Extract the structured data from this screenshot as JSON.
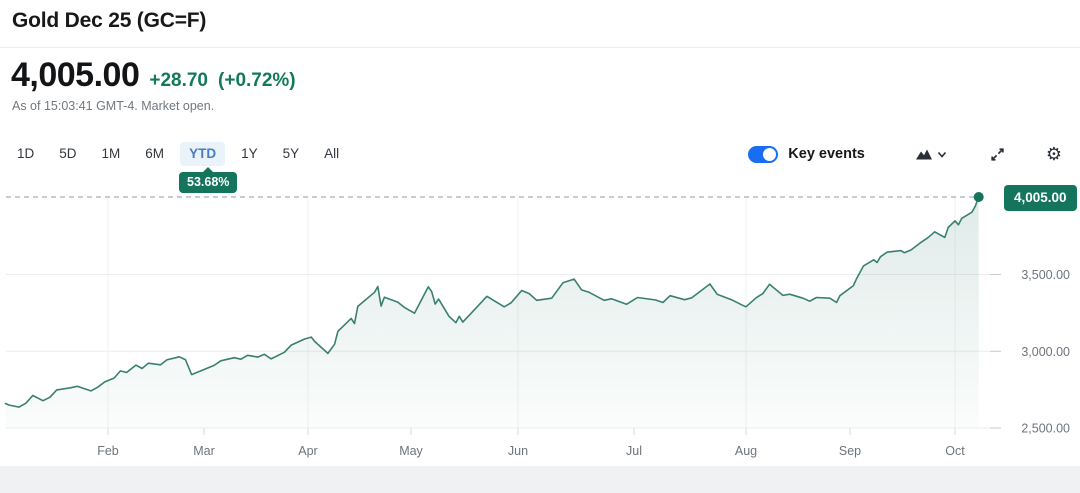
{
  "header": {
    "title": "Gold Dec 25 (GC=F)"
  },
  "quote": {
    "price": "4,005.00",
    "change": "+28.70",
    "change_pct": "(+0.72%)",
    "as_of": "As of 15:03:41 GMT-4. Market open.",
    "change_color": "#13795b"
  },
  "toolbar": {
    "ranges": [
      {
        "label": "1D",
        "active": false
      },
      {
        "label": "5D",
        "active": false
      },
      {
        "label": "1M",
        "active": false
      },
      {
        "label": "6M",
        "active": false
      },
      {
        "label": "YTD",
        "active": true
      },
      {
        "label": "1Y",
        "active": false
      },
      {
        "label": "5Y",
        "active": false
      },
      {
        "label": "All",
        "active": false
      }
    ],
    "ytd_return": "53.68%",
    "key_events_label": "Key events",
    "key_events_on": true,
    "icons": {
      "chart_type": "area-chart-icon",
      "chart_type_caret": "chevron-down-icon",
      "fullscreen": "expand-icon",
      "settings": "gear-icon"
    },
    "active_tab_color": "#4a7cc0",
    "toggle_color": "#186df2"
  },
  "chart_data": {
    "type": "area",
    "title": "Gold Dec 25 (GC=F) year-to-date price",
    "xlabel": "",
    "ylabel": "",
    "ylim": [
      2500,
      4050
    ],
    "grid": true,
    "legend": false,
    "line_color": "#3a8070",
    "badge_color": "#15745c",
    "x_axis": {
      "labels": [
        "Feb",
        "Mar",
        "Apr",
        "May",
        "Jun",
        "Jul",
        "Aug",
        "Sep",
        "Oct"
      ]
    },
    "y_axis": {
      "ticks": [
        {
          "label": "3,500.00",
          "value": 3500
        },
        {
          "label": "3,000.00",
          "value": 3000
        },
        {
          "label": "2,500.00",
          "value": 2500
        }
      ]
    },
    "current": {
      "value": 4005.0,
      "label": "4,005.00"
    },
    "points": [
      [
        "Jan 2",
        2660
      ],
      [
        "Jan 3",
        2650
      ],
      [
        "Jan 6",
        2636
      ],
      [
        "Jan 8",
        2662
      ],
      [
        "Jan 10",
        2712
      ],
      [
        "Jan 13",
        2678
      ],
      [
        "Jan 15",
        2700
      ],
      [
        "Jan 17",
        2748
      ],
      [
        "Jan 21",
        2762
      ],
      [
        "Jan 23",
        2772
      ],
      [
        "Jan 27",
        2742
      ],
      [
        "Jan 29",
        2766
      ],
      [
        "Jan 31",
        2800
      ],
      [
        "Feb 3",
        2826
      ],
      [
        "Feb 5",
        2872
      ],
      [
        "Feb 7",
        2862
      ],
      [
        "Feb 10",
        2910
      ],
      [
        "Feb 12",
        2888
      ],
      [
        "Feb 14",
        2922
      ],
      [
        "Feb 18",
        2912
      ],
      [
        "Feb 20",
        2944
      ],
      [
        "Feb 24",
        2964
      ],
      [
        "Feb 26",
        2946
      ],
      [
        "Feb 28",
        2848
      ],
      [
        "Mar 4",
        2908
      ],
      [
        "Mar 6",
        2938
      ],
      [
        "Mar 10",
        2958
      ],
      [
        "Mar 12",
        2948
      ],
      [
        "Mar 14",
        2974
      ],
      [
        "Mar 17",
        2962
      ],
      [
        "Mar 19",
        2980
      ],
      [
        "Mar 21",
        2950
      ],
      [
        "Mar 25",
        2994
      ],
      [
        "Mar 27",
        3040
      ],
      [
        "Mar 31",
        3080
      ],
      [
        "Apr 2",
        3092
      ],
      [
        "Apr 3",
        3064
      ],
      [
        "Apr 7",
        2986
      ],
      [
        "Apr 9",
        3046
      ],
      [
        "Apr 10",
        3130
      ],
      [
        "Apr 14",
        3214
      ],
      [
        "Apr 15",
        3180
      ],
      [
        "Apr 16",
        3292
      ],
      [
        "Apr 21",
        3384
      ],
      [
        "Apr 22",
        3422
      ],
      [
        "Apr 23",
        3294
      ],
      [
        "Apr 24",
        3352
      ],
      [
        "Apr 28",
        3320
      ],
      [
        "Apr 30",
        3286
      ],
      [
        "May 2",
        3248
      ],
      [
        "May 6",
        3420
      ],
      [
        "May 7",
        3388
      ],
      [
        "May 8",
        3308
      ],
      [
        "May 9",
        3340
      ],
      [
        "May 12",
        3228
      ],
      [
        "May 14",
        3186
      ],
      [
        "May 15",
        3228
      ],
      [
        "May 16",
        3190
      ],
      [
        "May 20",
        3286
      ],
      [
        "May 23",
        3358
      ],
      [
        "May 28",
        3290
      ],
      [
        "May 30",
        3316
      ],
      [
        "Jun 2",
        3396
      ],
      [
        "Jun 4",
        3376
      ],
      [
        "Jun 6",
        3332
      ],
      [
        "Jun 10",
        3346
      ],
      [
        "Jun 13",
        3446
      ],
      [
        "Jun 16",
        3470
      ],
      [
        "Jun 18",
        3400
      ],
      [
        "Jun 20",
        3384
      ],
      [
        "Jun 24",
        3332
      ],
      [
        "Jun 26",
        3342
      ],
      [
        "Jun 30",
        3306
      ],
      [
        "Jul 2",
        3350
      ],
      [
        "Jul 7",
        3334
      ],
      [
        "Jul 9",
        3318
      ],
      [
        "Jul 11",
        3362
      ],
      [
        "Jul 15",
        3336
      ],
      [
        "Jul 17",
        3348
      ],
      [
        "Jul 22",
        3438
      ],
      [
        "Jul 24",
        3372
      ],
      [
        "Jul 28",
        3336
      ],
      [
        "Jul 31",
        3300
      ],
      [
        "Aug 1",
        3290
      ],
      [
        "Aug 4",
        3348
      ],
      [
        "Aug 6",
        3376
      ],
      [
        "Aug 8",
        3436
      ],
      [
        "Aug 12",
        3364
      ],
      [
        "Aug 14",
        3372
      ],
      [
        "Aug 18",
        3346
      ],
      [
        "Aug 20",
        3326
      ],
      [
        "Aug 22",
        3350
      ],
      [
        "Aug 26",
        3346
      ],
      [
        "Aug 28",
        3318
      ],
      [
        "Aug 29",
        3362
      ],
      [
        "Sep 2",
        3428
      ],
      [
        "Sep 3",
        3476
      ],
      [
        "Sep 5",
        3556
      ],
      [
        "Sep 8",
        3596
      ],
      [
        "Sep 9",
        3578
      ],
      [
        "Sep 10",
        3616
      ],
      [
        "Sep 12",
        3646
      ],
      [
        "Sep 16",
        3656
      ],
      [
        "Sep 17",
        3642
      ],
      [
        "Sep 19",
        3660
      ],
      [
        "Sep 22",
        3710
      ],
      [
        "Sep 24",
        3740
      ],
      [
        "Sep 26",
        3778
      ],
      [
        "Sep 29",
        3742
      ],
      [
        "Sep 30",
        3806
      ],
      [
        "Oct 1",
        3850
      ],
      [
        "Oct 2",
        3824
      ],
      [
        "Oct 3",
        3866
      ],
      [
        "Oct 6",
        3906
      ],
      [
        "Oct 7",
        3946
      ],
      [
        "Oct 8",
        4005
      ]
    ]
  }
}
